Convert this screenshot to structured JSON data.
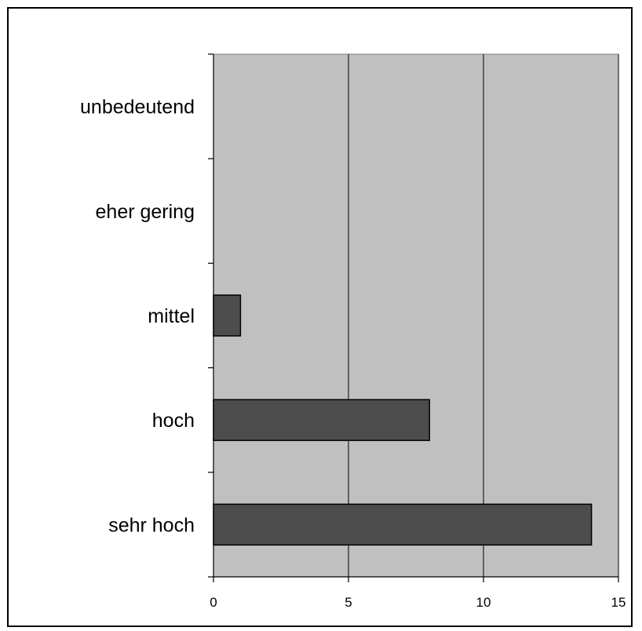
{
  "chart_data": {
    "type": "bar",
    "orientation": "horizontal",
    "categories": [
      "unbedeutend",
      "eher gering",
      "mittel",
      "hoch",
      "sehr hoch"
    ],
    "values": [
      0,
      0,
      1,
      8,
      14
    ],
    "xlim": [
      0,
      15
    ],
    "xticks": [
      "0",
      "5",
      "10",
      "15"
    ],
    "grid": true,
    "title": "",
    "xlabel": "",
    "ylabel": "",
    "colors": {
      "plot_background": "#c0c0c0",
      "bar_fill": "#4d4d4d",
      "bar_stroke": "#000000",
      "gridline": "#000000"
    }
  }
}
